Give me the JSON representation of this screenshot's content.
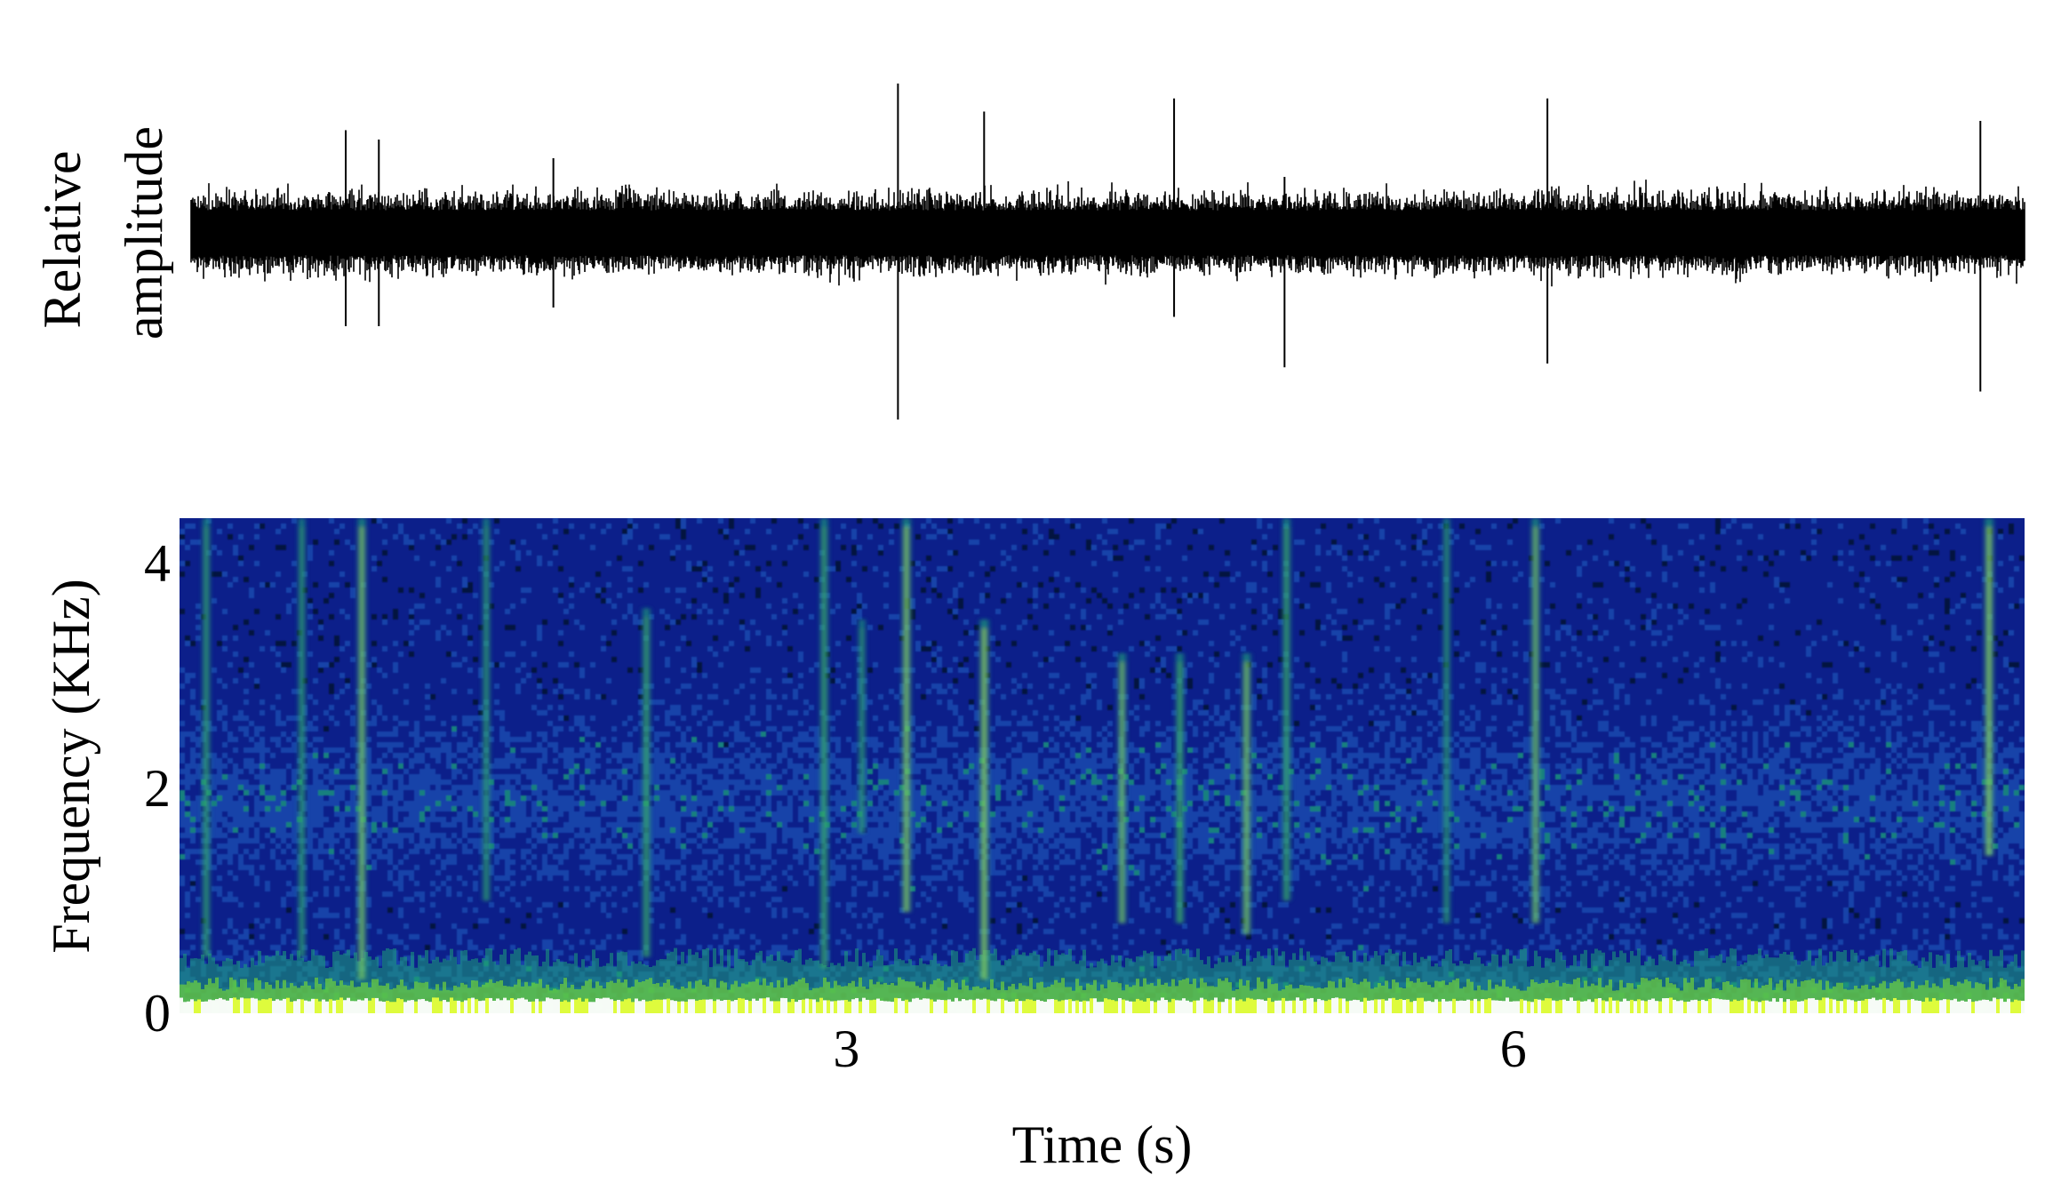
{
  "chart_data": [
    {
      "type": "line",
      "panel": "waveform",
      "ylabel_lines": [
        "Relative",
        "amplitude"
      ],
      "x_unit": "s",
      "xlim": [
        0,
        8.3
      ],
      "ylim": [
        -1,
        1
      ],
      "axes_visible": false,
      "baseline_noise_amplitude": 0.2,
      "spikes": [
        {
          "t": 0.7,
          "up": 0.55,
          "down": -0.5
        },
        {
          "t": 0.85,
          "up": 0.5,
          "down": -0.5
        },
        {
          "t": 1.64,
          "up": 0.4,
          "down": -0.4
        },
        {
          "t": 3.2,
          "up": 0.8,
          "down": -1.0
        },
        {
          "t": 3.59,
          "up": 0.65,
          "down": -0.2
        },
        {
          "t": 4.45,
          "up": 0.72,
          "down": -0.45
        },
        {
          "t": 4.95,
          "up": 0.3,
          "down": -0.72
        },
        {
          "t": 6.14,
          "up": 0.72,
          "down": -0.7
        },
        {
          "t": 8.1,
          "up": 0.6,
          "down": -0.85
        }
      ]
    },
    {
      "type": "heatmap",
      "panel": "spectrogram",
      "xlabel": "Time (s)",
      "ylabel": "Frequency (KHz)",
      "xlim": [
        0,
        8.3
      ],
      "ylim": [
        0,
        4.4
      ],
      "xticks": [
        3,
        6
      ],
      "yticks": [
        0,
        2,
        4
      ],
      "colormap": [
        "#000a2a",
        "#0a1e8c",
        "#1e50b4",
        "#1ea07a",
        "#6fd23a",
        "#e6ff3c",
        "#ffffff"
      ],
      "low_frequency_band_khz": [
        0,
        0.4
      ],
      "vertical_streaks": [
        {
          "t": 0.12,
          "fmin": 0.5,
          "fmax": 4.4,
          "intensity": 0.55
        },
        {
          "t": 0.55,
          "fmin": 0.5,
          "fmax": 4.4,
          "intensity": 0.5
        },
        {
          "t": 0.82,
          "fmin": 0.3,
          "fmax": 4.4,
          "intensity": 0.8
        },
        {
          "t": 1.38,
          "fmin": 1.0,
          "fmax": 4.4,
          "intensity": 0.5
        },
        {
          "t": 2.1,
          "fmin": 0.5,
          "fmax": 3.6,
          "intensity": 0.65
        },
        {
          "t": 2.9,
          "fmin": 0.4,
          "fmax": 4.4,
          "intensity": 0.65
        },
        {
          "t": 3.07,
          "fmin": 1.6,
          "fmax": 3.5,
          "intensity": 0.45
        },
        {
          "t": 3.27,
          "fmin": 0.9,
          "fmax": 4.4,
          "intensity": 0.85
        },
        {
          "t": 3.62,
          "fmin": 0.3,
          "fmax": 3.5,
          "intensity": 0.9
        },
        {
          "t": 4.24,
          "fmin": 0.8,
          "fmax": 3.2,
          "intensity": 0.75
        },
        {
          "t": 4.5,
          "fmin": 0.8,
          "fmax": 3.2,
          "intensity": 0.7
        },
        {
          "t": 4.8,
          "fmin": 0.7,
          "fmax": 3.2,
          "intensity": 0.8
        },
        {
          "t": 4.98,
          "fmin": 1.0,
          "fmax": 4.4,
          "intensity": 0.65
        },
        {
          "t": 5.7,
          "fmin": 0.8,
          "fmax": 4.4,
          "intensity": 0.45
        },
        {
          "t": 6.1,
          "fmin": 0.8,
          "fmax": 4.4,
          "intensity": 0.75
        },
        {
          "t": 8.14,
          "fmin": 1.4,
          "fmax": 4.4,
          "intensity": 0.9
        }
      ]
    }
  ]
}
